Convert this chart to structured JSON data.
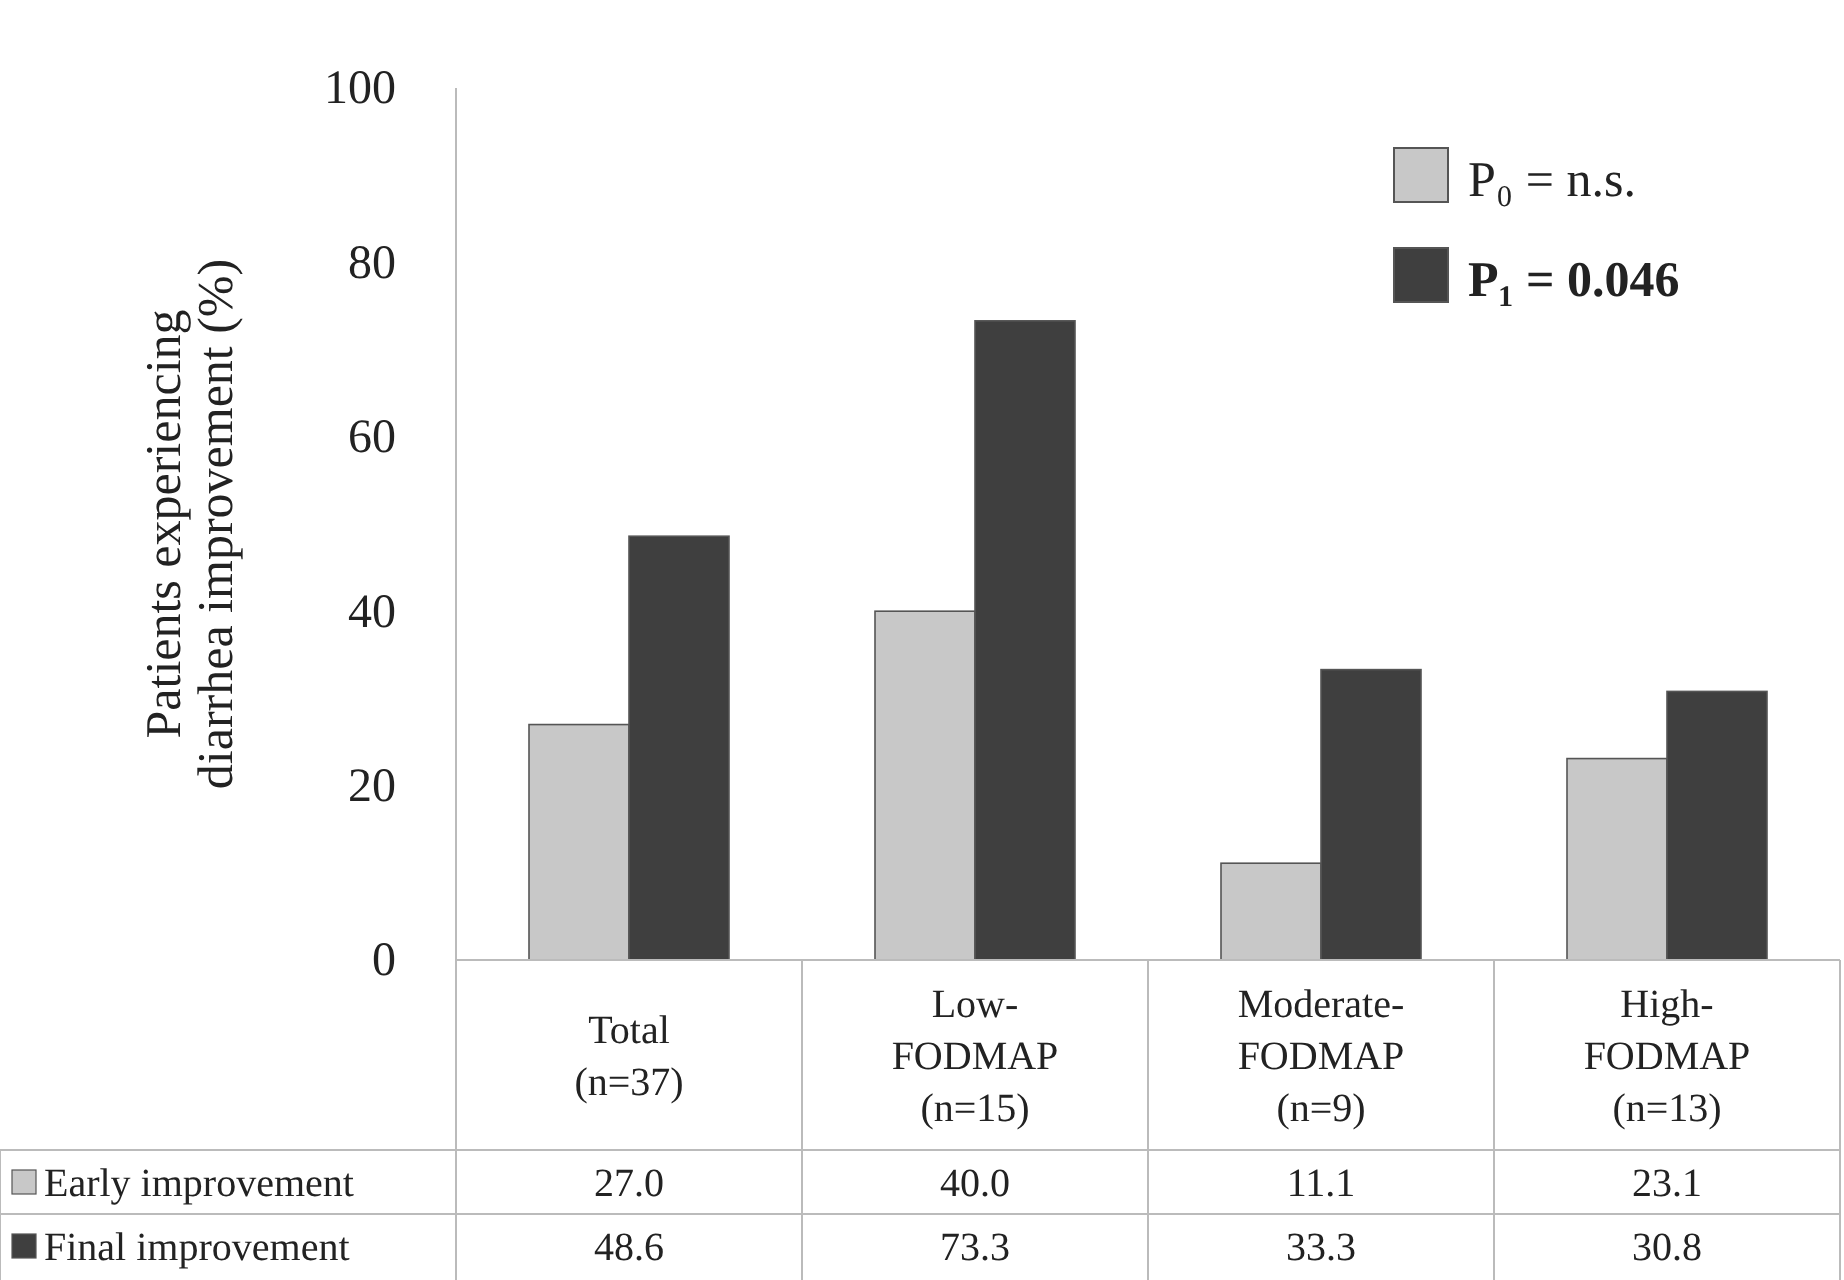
{
  "chart_data": {
    "type": "bar",
    "ylabel": "Patients experiencing diarrhea improvement (%)",
    "categories": [
      "Total (n=37)",
      "Low-FODMAP (n=15)",
      "Moderate-FODMAP (n=9)",
      "High-FODMAP (n=13)"
    ],
    "series": [
      {
        "name": "Early improvement",
        "color": "#c8c8c8",
        "values": [
          27.0,
          40.0,
          11.1,
          23.1
        ],
        "value_labels": [
          "27.0",
          "40.0",
          "11.1",
          "23.1"
        ]
      },
      {
        "name": "Final improvement",
        "color": "#3f3f3f",
        "values": [
          48.6,
          73.3,
          33.3,
          30.8
        ],
        "value_labels": [
          "48.6",
          "73.3",
          "33.3",
          "30.8"
        ]
      }
    ],
    "ylim": [
      0,
      100
    ],
    "yticks": [
      0,
      20,
      40,
      60,
      80,
      100
    ],
    "grid": false,
    "legend": "bottom",
    "annotations": [
      "P₀ = n.s.",
      "P₁ = 0.046"
    ]
  }
}
